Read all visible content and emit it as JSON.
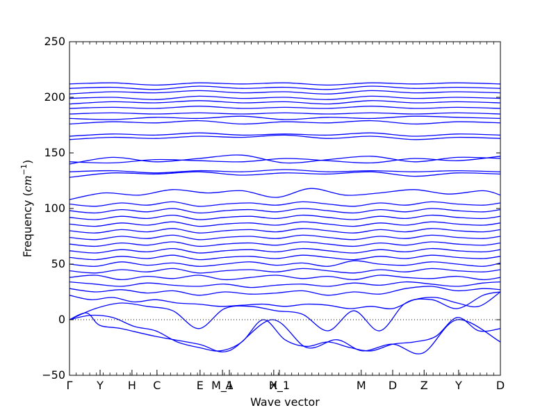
{
  "chart_data": {
    "type": "line",
    "xlabel": "Wave vector",
    "ylabel_text": "Frequency (",
    "ylabel_unit_base": "cm",
    "ylabel_unit_exp": "−1",
    "ylabel_close": ")",
    "ylim": [
      -50,
      250
    ],
    "yticks": [
      -50,
      0,
      50,
      100,
      150,
      200,
      250
    ],
    "ytick_labels": [
      "−50",
      "0",
      "50",
      "100",
      "150",
      "200",
      "250"
    ],
    "xticks": [
      {
        "label": "Γ",
        "x": 0.0
      },
      {
        "label": "Y",
        "x": 0.071
      },
      {
        "label": "H",
        "x": 0.145
      },
      {
        "label": "C",
        "x": 0.203
      },
      {
        "label": "E",
        "x": 0.303
      },
      {
        "label": "M_1",
        "x": 0.355
      },
      {
        "label": "A",
        "x": 0.371
      },
      {
        "label": "X",
        "x": 0.474
      },
      {
        "label": "H_1",
        "x": 0.487
      },
      {
        "label": "M",
        "x": 0.677
      },
      {
        "label": "D",
        "x": 0.75
      },
      {
        "label": "Z",
        "x": 0.823
      },
      {
        "label": "Y",
        "x": 0.903
      },
      {
        "label": "D",
        "x": 1.0
      }
    ],
    "zero_line": true,
    "line_color": "#0000ff",
    "grid": false,
    "series": [
      {
        "x": [
          0.0,
          0.04,
          0.07,
          0.12,
          0.2,
          0.3,
          0.37,
          0.47,
          0.55,
          0.62,
          0.68,
          0.75,
          0.82,
          0.9,
          1.0
        ],
        "values": [
          0,
          6,
          -5,
          -8,
          -15,
          -22,
          -28,
          0,
          -25,
          -18,
          -28,
          -22,
          -30,
          0,
          -20
        ]
      },
      {
        "x": [
          0.0,
          0.05,
          0.1,
          0.15,
          0.2,
          0.25,
          0.3,
          0.35,
          0.4,
          0.45,
          0.5,
          0.55,
          0.6,
          0.65,
          0.7,
          0.75,
          0.8,
          0.85,
          0.9,
          0.95,
          1.0
        ],
        "values": [
          0,
          4,
          2,
          -6,
          -10,
          -20,
          -25,
          -28,
          -20,
          0,
          -18,
          -24,
          -20,
          -25,
          -28,
          -22,
          -20,
          -15,
          2,
          -10,
          -8
        ]
      },
      {
        "x": [
          0.0,
          0.06,
          0.12,
          0.18,
          0.24,
          0.3,
          0.36,
          0.42,
          0.48,
          0.54,
          0.6,
          0.66,
          0.72,
          0.78,
          0.84,
          0.9,
          0.96,
          1.0
        ],
        "values": [
          0,
          10,
          15,
          12,
          8,
          -8,
          10,
          12,
          8,
          5,
          -10,
          8,
          -10,
          15,
          18,
          10,
          22,
          25
        ]
      },
      {
        "x": [
          0.0,
          0.05,
          0.1,
          0.15,
          0.2,
          0.25,
          0.3,
          0.35,
          0.4,
          0.45,
          0.5,
          0.55,
          0.6,
          0.65,
          0.7,
          0.75,
          0.8,
          0.85,
          0.9,
          0.95,
          1.0
        ],
        "values": [
          22,
          18,
          20,
          16,
          18,
          15,
          14,
          12,
          13,
          14,
          12,
          14,
          13,
          10,
          12,
          10,
          18,
          20,
          15,
          12,
          25
        ]
      },
      {
        "x": [
          0.0,
          0.06,
          0.12,
          0.18,
          0.24,
          0.3,
          0.36,
          0.42,
          0.48,
          0.54,
          0.6,
          0.66,
          0.72,
          0.78,
          0.84,
          0.9,
          0.96,
          1.0
        ],
        "values": [
          28,
          25,
          27,
          24,
          26,
          22,
          25,
          23,
          24,
          26,
          22,
          25,
          23,
          28,
          30,
          26,
          28,
          27
        ]
      },
      {
        "x": [
          0.0,
          0.06,
          0.12,
          0.18,
          0.24,
          0.3,
          0.36,
          0.42,
          0.48,
          0.54,
          0.6,
          0.66,
          0.72,
          0.78,
          0.84,
          0.9,
          0.96,
          1.0
        ],
        "values": [
          34,
          32,
          30,
          33,
          31,
          30,
          32,
          29,
          31,
          32,
          30,
          33,
          31,
          34,
          32,
          30,
          33,
          34
        ]
      },
      {
        "x": [
          0.0,
          0.06,
          0.12,
          0.18,
          0.24,
          0.3,
          0.36,
          0.42,
          0.48,
          0.54,
          0.6,
          0.66,
          0.72,
          0.78,
          0.84,
          0.9,
          0.96,
          1.0
        ],
        "values": [
          38,
          40,
          36,
          39,
          37,
          40,
          36,
          38,
          40,
          37,
          39,
          36,
          40,
          38,
          37,
          39,
          36,
          38
        ]
      },
      {
        "x": [
          0.0,
          0.06,
          0.12,
          0.18,
          0.24,
          0.3,
          0.36,
          0.42,
          0.48,
          0.54,
          0.6,
          0.66,
          0.72,
          0.78,
          0.84,
          0.9,
          0.96,
          1.0
        ],
        "values": [
          44,
          42,
          45,
          43,
          46,
          42,
          44,
          45,
          43,
          46,
          44,
          42,
          45,
          43,
          46,
          44,
          43,
          45
        ]
      },
      {
        "x": [
          0.0,
          0.06,
          0.12,
          0.18,
          0.24,
          0.3,
          0.36,
          0.42,
          0.48,
          0.54,
          0.6,
          0.66,
          0.72,
          0.78,
          0.84,
          0.9,
          0.96,
          1.0
        ],
        "values": [
          50,
          48,
          52,
          49,
          51,
          48,
          50,
          52,
          49,
          51,
          48,
          53,
          50,
          49,
          52,
          50,
          48,
          51
        ]
      },
      {
        "x": [
          0.0,
          0.06,
          0.12,
          0.18,
          0.24,
          0.3,
          0.36,
          0.42,
          0.48,
          0.54,
          0.6,
          0.66,
          0.72,
          0.78,
          0.84,
          0.9,
          0.96,
          1.0
        ],
        "values": [
          56,
          54,
          57,
          55,
          58,
          54,
          56,
          57,
          55,
          58,
          56,
          54,
          57,
          55,
          58,
          56,
          55,
          57
        ]
      },
      {
        "x": [
          0.0,
          0.06,
          0.12,
          0.18,
          0.24,
          0.3,
          0.36,
          0.42,
          0.48,
          0.54,
          0.6,
          0.66,
          0.72,
          0.78,
          0.84,
          0.9,
          0.96,
          1.0
        ],
        "values": [
          62,
          60,
          63,
          61,
          64,
          60,
          62,
          63,
          61,
          64,
          62,
          60,
          63,
          61,
          64,
          62,
          61,
          63
        ]
      },
      {
        "x": [
          0.0,
          0.06,
          0.12,
          0.18,
          0.24,
          0.3,
          0.36,
          0.42,
          0.48,
          0.54,
          0.6,
          0.66,
          0.72,
          0.78,
          0.84,
          0.9,
          0.96,
          1.0
        ],
        "values": [
          68,
          66,
          69,
          67,
          70,
          66,
          68,
          69,
          67,
          70,
          68,
          66,
          69,
          67,
          70,
          68,
          67,
          69
        ]
      },
      {
        "x": [
          0.0,
          0.06,
          0.12,
          0.18,
          0.24,
          0.3,
          0.36,
          0.42,
          0.48,
          0.54,
          0.6,
          0.66,
          0.72,
          0.78,
          0.84,
          0.9,
          0.96,
          1.0
        ],
        "values": [
          74,
          72,
          75,
          73,
          76,
          72,
          74,
          75,
          73,
          76,
          74,
          72,
          75,
          73,
          76,
          74,
          73,
          75
        ]
      },
      {
        "x": [
          0.0,
          0.06,
          0.12,
          0.18,
          0.24,
          0.3,
          0.36,
          0.42,
          0.48,
          0.54,
          0.6,
          0.66,
          0.72,
          0.78,
          0.84,
          0.9,
          0.96,
          1.0
        ],
        "values": [
          80,
          78,
          81,
          79,
          82,
          78,
          80,
          81,
          79,
          82,
          80,
          78,
          81,
          79,
          82,
          80,
          79,
          81
        ]
      },
      {
        "x": [
          0.0,
          0.06,
          0.12,
          0.18,
          0.24,
          0.3,
          0.36,
          0.42,
          0.48,
          0.54,
          0.6,
          0.66,
          0.72,
          0.78,
          0.84,
          0.9,
          0.96,
          1.0
        ],
        "values": [
          86,
          84,
          87,
          85,
          88,
          84,
          86,
          87,
          85,
          88,
          86,
          84,
          87,
          85,
          88,
          86,
          85,
          87
        ]
      },
      {
        "x": [
          0.0,
          0.06,
          0.12,
          0.18,
          0.24,
          0.3,
          0.36,
          0.42,
          0.48,
          0.54,
          0.6,
          0.66,
          0.72,
          0.78,
          0.84,
          0.9,
          0.96,
          1.0
        ],
        "values": [
          92,
          90,
          93,
          91,
          94,
          90,
          92,
          93,
          91,
          94,
          92,
          90,
          93,
          91,
          94,
          92,
          91,
          93
        ]
      },
      {
        "x": [
          0.0,
          0.06,
          0.12,
          0.18,
          0.24,
          0.3,
          0.36,
          0.42,
          0.48,
          0.54,
          0.6,
          0.66,
          0.72,
          0.78,
          0.84,
          0.9,
          0.96,
          1.0
        ],
        "values": [
          98,
          96,
          99,
          97,
          100,
          96,
          98,
          99,
          97,
          100,
          98,
          96,
          99,
          97,
          100,
          98,
          97,
          99
        ]
      },
      {
        "x": [
          0.0,
          0.06,
          0.12,
          0.18,
          0.24,
          0.3,
          0.36,
          0.42,
          0.48,
          0.54,
          0.6,
          0.66,
          0.72,
          0.78,
          0.84,
          0.9,
          0.96,
          1.0
        ],
        "values": [
          104,
          102,
          105,
          103,
          106,
          102,
          104,
          105,
          103,
          106,
          104,
          102,
          105,
          103,
          106,
          104,
          103,
          105
        ]
      },
      {
        "x": [
          0.0,
          0.08,
          0.16,
          0.24,
          0.32,
          0.4,
          0.48,
          0.56,
          0.64,
          0.72,
          0.8,
          0.88,
          0.96,
          1.0
        ],
        "values": [
          108,
          114,
          112,
          117,
          114,
          116,
          110,
          118,
          112,
          114,
          117,
          113,
          116,
          112
        ]
      },
      {
        "x": [
          0.0,
          0.1,
          0.2,
          0.3,
          0.4,
          0.5,
          0.6,
          0.7,
          0.8,
          0.9,
          1.0
        ],
        "values": [
          128,
          132,
          131,
          133,
          130,
          132,
          131,
          133,
          129,
          132,
          131
        ]
      },
      {
        "x": [
          0.0,
          0.1,
          0.2,
          0.3,
          0.4,
          0.5,
          0.6,
          0.7,
          0.8,
          0.9,
          1.0
        ],
        "values": [
          133,
          134,
          132,
          134,
          133,
          135,
          133,
          134,
          133,
          134,
          133
        ]
      },
      {
        "x": [
          0.0,
          0.1,
          0.2,
          0.3,
          0.4,
          0.5,
          0.6,
          0.7,
          0.8,
          0.9,
          1.0
        ],
        "values": [
          140,
          146,
          142,
          145,
          148,
          141,
          144,
          147,
          142,
          146,
          145
        ]
      },
      {
        "x": [
          0.0,
          0.1,
          0.2,
          0.3,
          0.4,
          0.5,
          0.6,
          0.7,
          0.8,
          0.9,
          1.0
        ],
        "values": [
          142,
          141,
          144,
          143,
          142,
          145,
          143,
          141,
          145,
          143,
          147
        ]
      },
      {
        "x": [
          0.0,
          0.1,
          0.2,
          0.3,
          0.4,
          0.5,
          0.6,
          0.7,
          0.8,
          0.9,
          1.0
        ],
        "values": [
          162,
          164,
          163,
          165,
          164,
          166,
          163,
          165,
          162,
          164,
          163
        ]
      },
      {
        "x": [
          0.0,
          0.1,
          0.2,
          0.3,
          0.4,
          0.5,
          0.6,
          0.7,
          0.8,
          0.9,
          1.0
        ],
        "values": [
          165,
          167,
          166,
          168,
          166,
          167,
          166,
          168,
          165,
          167,
          166
        ]
      },
      {
        "x": [
          0.0,
          0.1,
          0.2,
          0.3,
          0.4,
          0.5,
          0.6,
          0.7,
          0.8,
          0.9,
          1.0
        ],
        "values": [
          176,
          178,
          177,
          179,
          176,
          178,
          177,
          179,
          176,
          178,
          177
        ]
      },
      {
        "x": [
          0.0,
          0.1,
          0.2,
          0.3,
          0.4,
          0.5,
          0.6,
          0.7,
          0.8,
          0.9,
          1.0
        ],
        "values": [
          181,
          180,
          182,
          181,
          183,
          180,
          182,
          181,
          183,
          182,
          181
        ]
      },
      {
        "x": [
          0.0,
          0.1,
          0.2,
          0.3,
          0.4,
          0.5,
          0.6,
          0.7,
          0.8,
          0.9,
          1.0
        ],
        "values": [
          185,
          186,
          185,
          186,
          185,
          186,
          185,
          186,
          185,
          186,
          185
        ]
      },
      {
        "x": [
          0.0,
          0.1,
          0.2,
          0.3,
          0.4,
          0.5,
          0.6,
          0.7,
          0.8,
          0.9,
          1.0
        ],
        "values": [
          190,
          191,
          190,
          192,
          190,
          191,
          190,
          192,
          190,
          191,
          190
        ]
      },
      {
        "x": [
          0.0,
          0.1,
          0.2,
          0.3,
          0.4,
          0.5,
          0.6,
          0.7,
          0.8,
          0.9,
          1.0
        ],
        "values": [
          194,
          196,
          195,
          197,
          195,
          196,
          194,
          197,
          195,
          196,
          195
        ]
      },
      {
        "x": [
          0.0,
          0.1,
          0.2,
          0.3,
          0.4,
          0.5,
          0.6,
          0.7,
          0.8,
          0.9,
          1.0
        ],
        "values": [
          199,
          200,
          198,
          201,
          199,
          200,
          198,
          201,
          199,
          200,
          199
        ]
      },
      {
        "x": [
          0.0,
          0.1,
          0.2,
          0.3,
          0.4,
          0.5,
          0.6,
          0.7,
          0.8,
          0.9,
          1.0
        ],
        "values": [
          203,
          205,
          204,
          206,
          204,
          205,
          203,
          206,
          204,
          205,
          204
        ]
      },
      {
        "x": [
          0.0,
          0.1,
          0.2,
          0.3,
          0.4,
          0.5,
          0.6,
          0.7,
          0.8,
          0.9,
          1.0
        ],
        "values": [
          208,
          209,
          207,
          210,
          208,
          209,
          207,
          210,
          208,
          209,
          208
        ]
      },
      {
        "x": [
          0.0,
          0.1,
          0.2,
          0.3,
          0.4,
          0.5,
          0.6,
          0.7,
          0.8,
          0.9,
          1.0
        ],
        "values": [
          212,
          213,
          211,
          213,
          212,
          213,
          211,
          213,
          212,
          213,
          212
        ]
      }
    ]
  }
}
